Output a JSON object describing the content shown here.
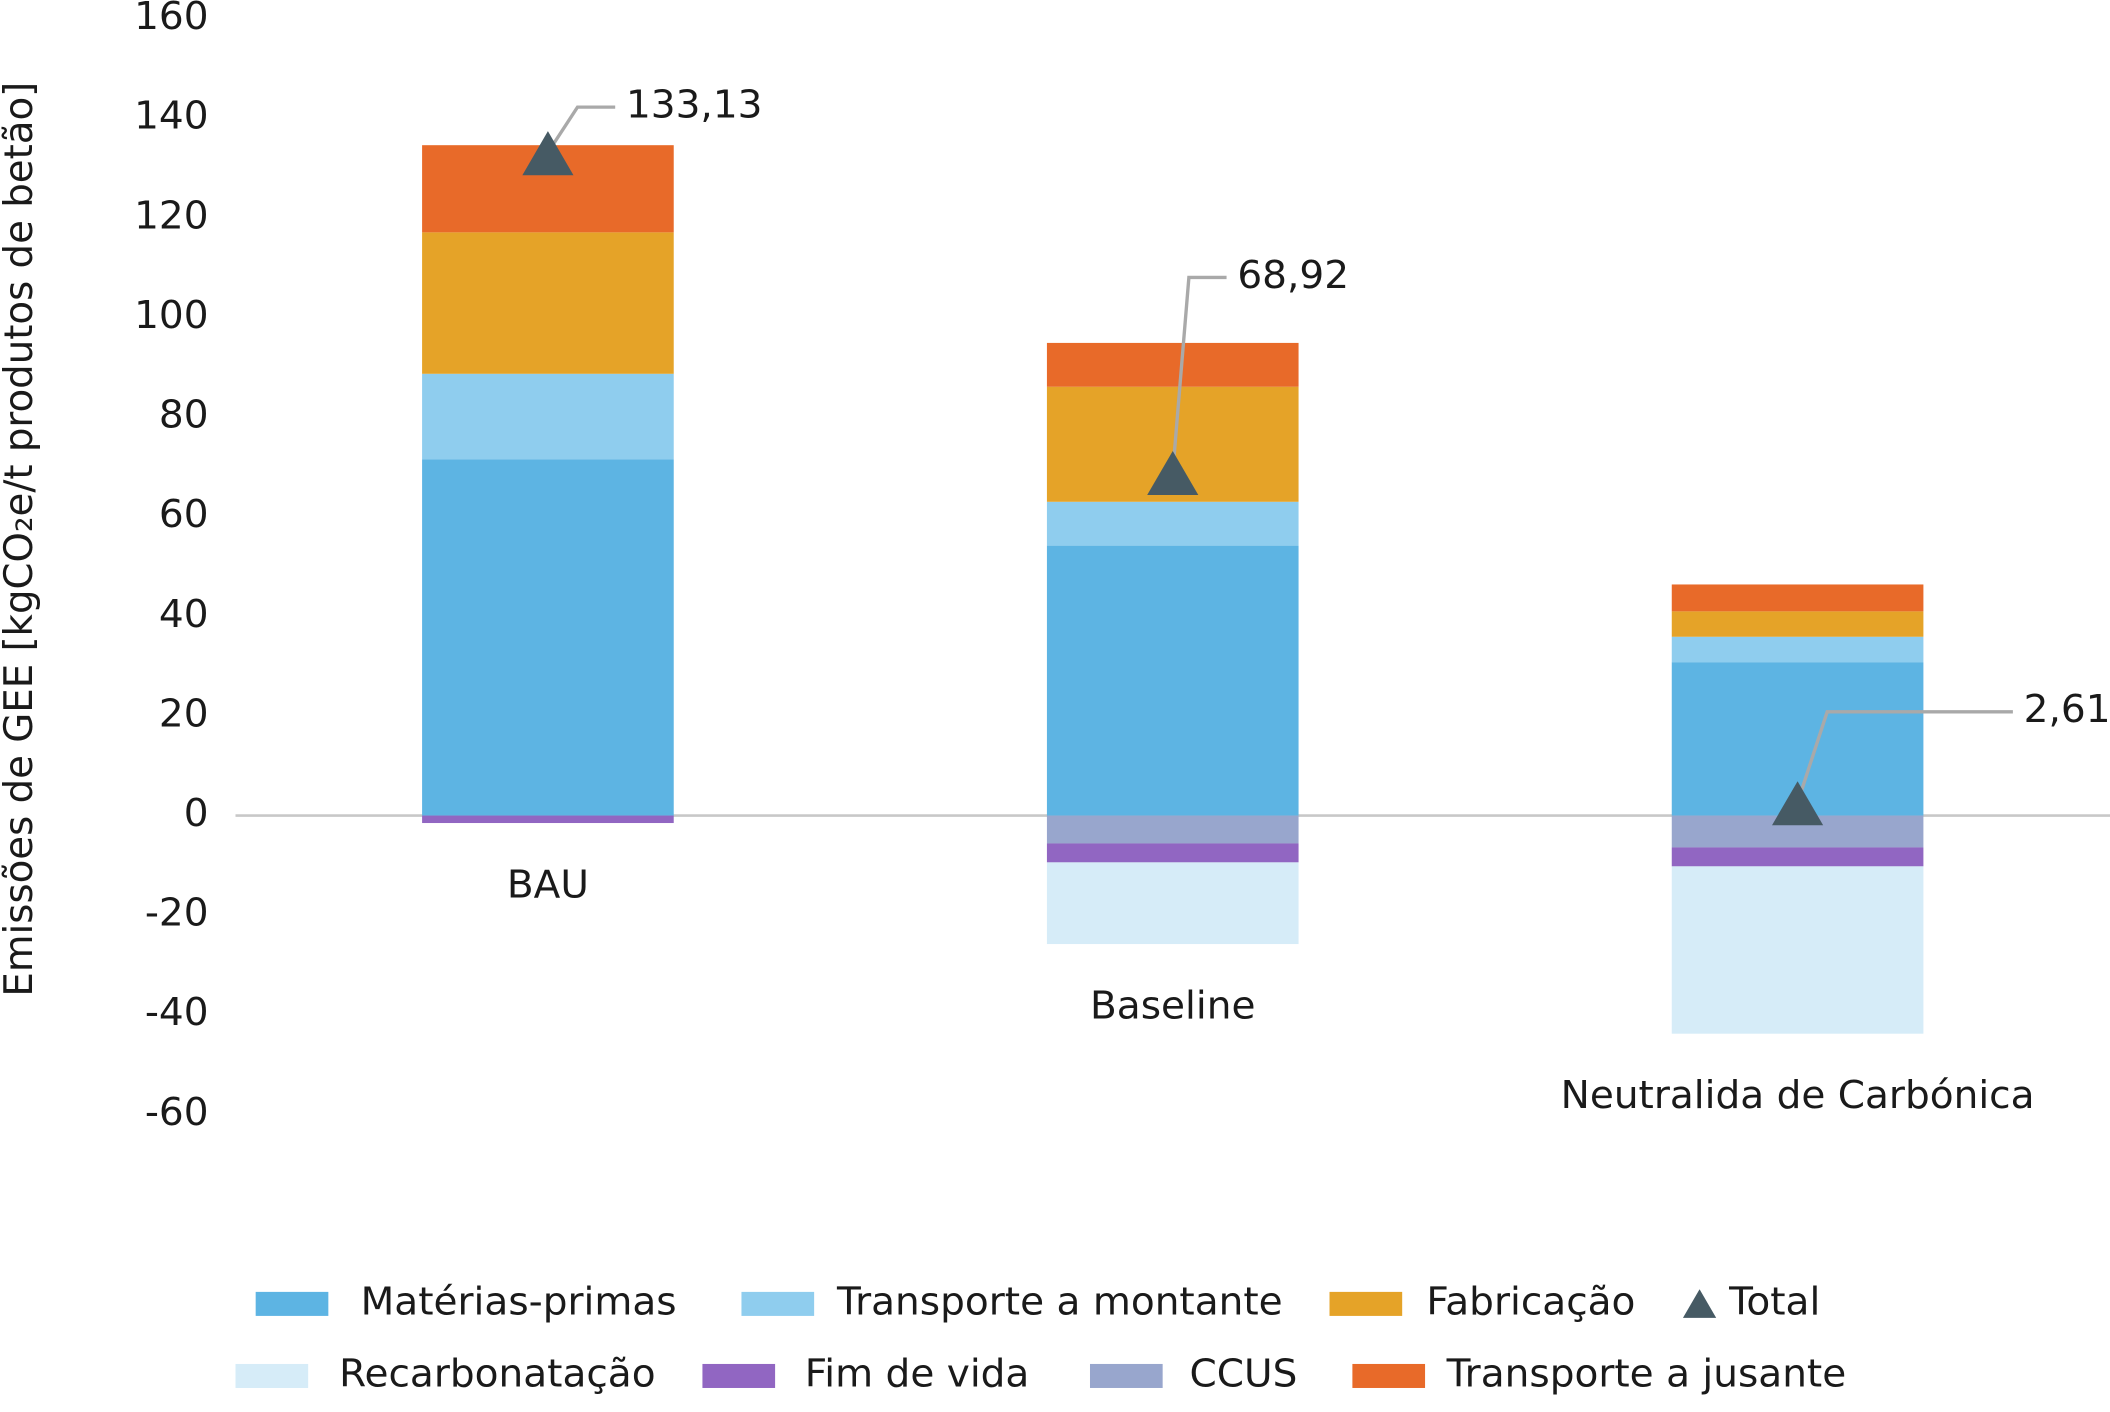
{
  "chart_data": {
    "type": "stacked-bar",
    "y_label": "Emissões de GEE [kgCO₂e/t produtos de betão]",
    "categories": [
      "BAU",
      "Baseline",
      "Neutralida de Carbónica"
    ],
    "ylim": [
      -60,
      160
    ],
    "yticks": [
      -60,
      -40,
      -20,
      0,
      20,
      40,
      60,
      80,
      100,
      120,
      140,
      160
    ],
    "series": [
      {
        "name": "Matérias-primas",
        "color": "#5db4e3",
        "values": [
          71.5,
          54.2,
          30.8
        ]
      },
      {
        "name": "Transporte a montante",
        "color": "#8fcdee",
        "values": [
          17.2,
          8.8,
          5.1
        ]
      },
      {
        "name": "Fabricação",
        "color": "#e5a328",
        "values": [
          28.4,
          23.1,
          5.1
        ]
      },
      {
        "name": "Total",
        "color": "#465a64",
        "type": "marker",
        "values": [
          133.13,
          68.92,
          2.61
        ],
        "value_labels": [
          "133,13",
          "68,92",
          "2,61"
        ]
      },
      {
        "name": "Recarbonatação",
        "color": "#d6ecf8",
        "values": [
          0,
          -16.4,
          -33.6
        ]
      },
      {
        "name": "Fim de vida",
        "color": "#9166c2",
        "values": [
          -1.5,
          -3.8,
          -3.8
        ]
      },
      {
        "name": "CCUS",
        "color": "#98a6cd",
        "values": [
          0,
          -5.6,
          -6.4
        ]
      },
      {
        "name": "Transporte a jusante",
        "color": "#e86a29",
        "values": [
          17.5,
          8.8,
          5.4
        ]
      }
    ]
  }
}
